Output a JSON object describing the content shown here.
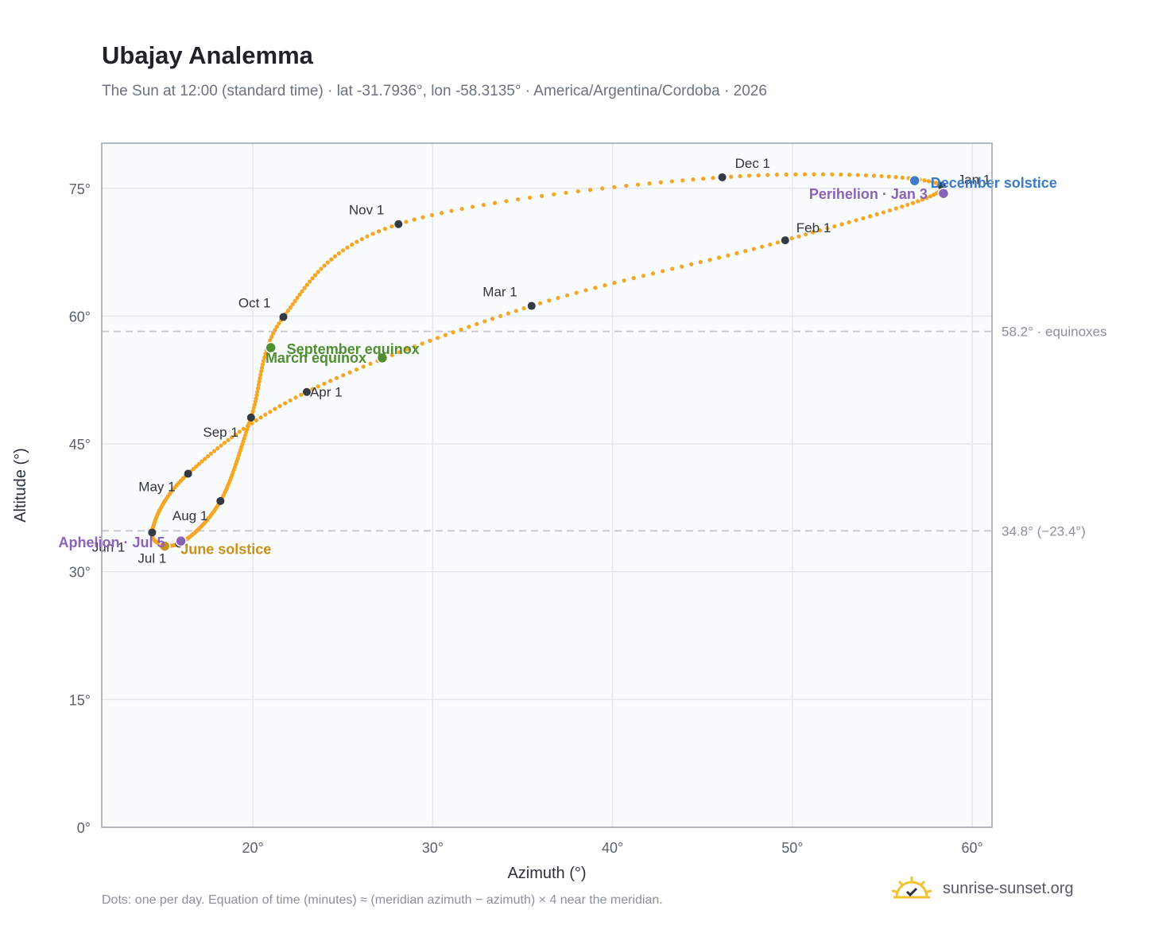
{
  "header": {
    "title": "Ubajay Analemma",
    "subtitle": "The Sun at 12:00 (standard time) · lat -31.7936°, lon -58.3135° · America/Argentina/Cordoba · 2026"
  },
  "footer": {
    "note": "Dots: one per day. Equation of time (minutes) ≈ (meridian azimuth − azimuth) × 4 near the meridian.",
    "brand": "sunrise-sunset.org",
    "brand_icon": "sun-logo-icon"
  },
  "colors": {
    "curve": "#f5a623",
    "month_marker": "#333a42",
    "december_solstice": "#3b7bc8",
    "june_solstice": "#c8911a",
    "equinox": "#4f8f2f",
    "perihelion_aphelion": "#8a63b8",
    "reference_line": "#c5cad1",
    "plot_bg": "#f9fbfd",
    "grid": "#e4e8ed"
  },
  "chart_data": {
    "type": "scatter",
    "title": "Ubajay Analemma",
    "xlabel": "Azimuth (°)",
    "ylabel": "Altitude (°)",
    "xlim": [
      11.6,
      61.1
    ],
    "ylim": [
      0,
      80.3
    ],
    "xticks": [
      20,
      30,
      40,
      50,
      60
    ],
    "xtick_labels": [
      "20°",
      "30°",
      "40°",
      "50°",
      "60°"
    ],
    "yticks": [
      0,
      15,
      30,
      45,
      60,
      75
    ],
    "ytick_labels": [
      "0°",
      "15°",
      "30°",
      "45°",
      "60°",
      "75°"
    ],
    "grid": true,
    "reference_lines": [
      {
        "y": 58.2,
        "label": "58.2° · equinoxes"
      },
      {
        "y": 34.8,
        "label": "34.8° (−23.4°)"
      }
    ],
    "month_points": [
      {
        "label": "Jan 1",
        "x": 58.3,
        "y": 75.3
      },
      {
        "label": "Feb 1",
        "x": 49.6,
        "y": 68.9
      },
      {
        "label": "Mar 1",
        "x": 35.5,
        "y": 61.2
      },
      {
        "label": "Apr 1",
        "x": 23.0,
        "y": 51.1
      },
      {
        "label": "May 1",
        "x": 16.4,
        "y": 41.5
      },
      {
        "label": "Jun 1",
        "x": 14.4,
        "y": 34.6
      },
      {
        "label": "Jul 1",
        "x": 15.9,
        "y": 33.3
      },
      {
        "label": "Aug 1",
        "x": 18.2,
        "y": 38.3
      },
      {
        "label": "Sep 1",
        "x": 19.9,
        "y": 48.1
      },
      {
        "label": "Oct 1",
        "x": 21.7,
        "y": 59.9
      },
      {
        "label": "Nov 1",
        "x": 28.1,
        "y": 70.8
      },
      {
        "label": "Dec 1",
        "x": 46.1,
        "y": 76.3
      }
    ],
    "events": [
      {
        "label": "December solstice",
        "x": 56.8,
        "y": 75.9
      },
      {
        "label": "Perihelion · Jan 3",
        "x": 58.4,
        "y": 74.4
      },
      {
        "label": "March equinox",
        "x": 27.2,
        "y": 55.1
      },
      {
        "label": "September equinox",
        "x": 21.0,
        "y": 56.3
      },
      {
        "label": "June solstice",
        "x": 15.1,
        "y": 33.0
      },
      {
        "label": "Aphelion · Jul 5",
        "x": 16.0,
        "y": 33.6
      }
    ]
  }
}
